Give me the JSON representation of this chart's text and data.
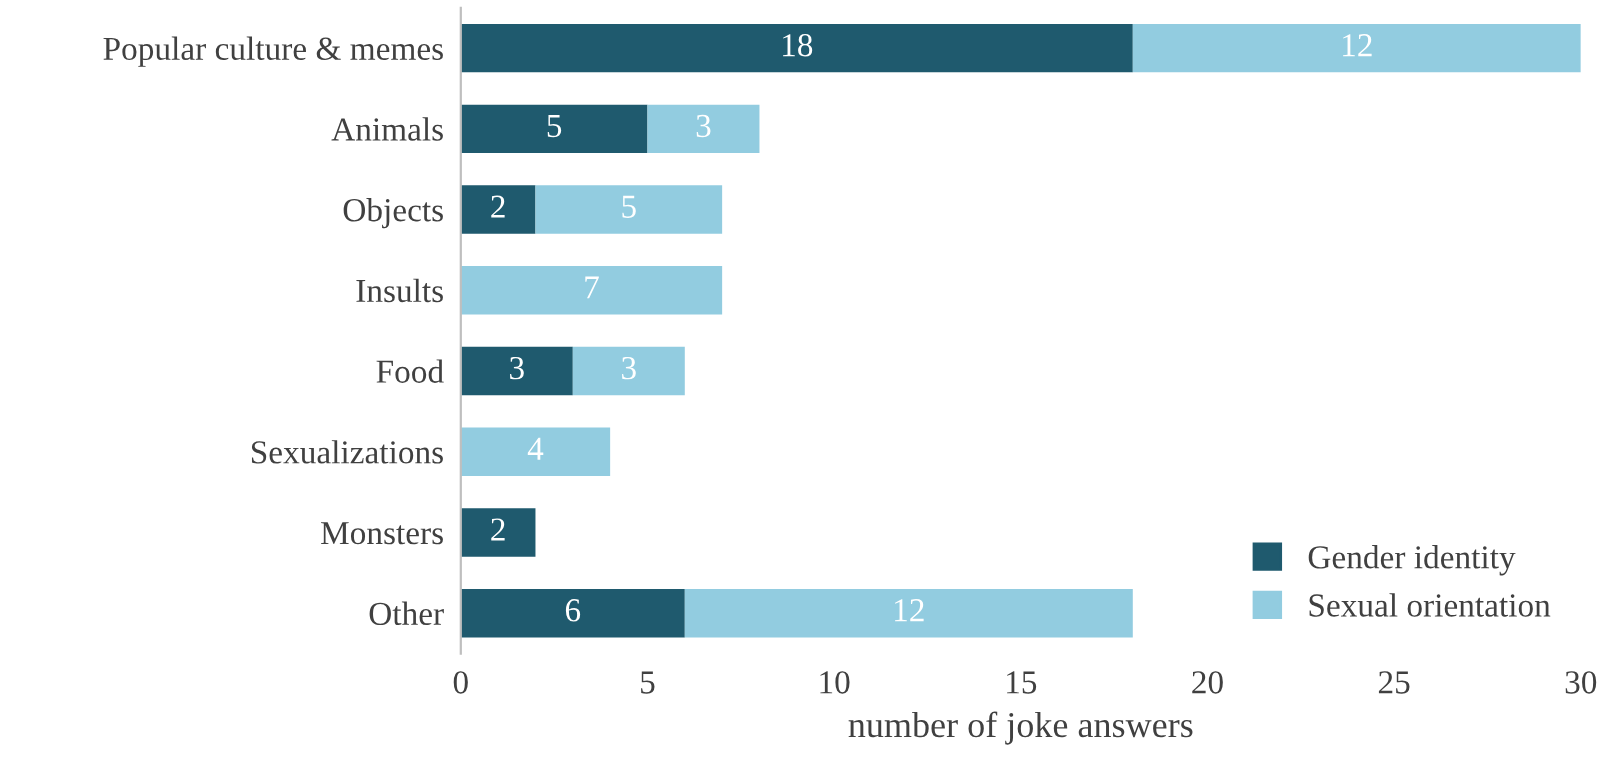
{
  "chart_data": {
    "type": "bar",
    "orientation": "horizontal",
    "stacked": true,
    "xlabel": "number of joke answers",
    "categories": [
      "Popular culture & memes",
      "Animals",
      "Objects",
      "Insults",
      "Food",
      "Sexualizations",
      "Monsters",
      "Other"
    ],
    "series": [
      {
        "name": "Gender identity",
        "color": "#1f5a6e",
        "values": [
          18,
          5,
          2,
          null,
          3,
          null,
          2,
          6
        ]
      },
      {
        "name": "Sexual orientation",
        "color": "#92cce0",
        "values": [
          12,
          3,
          5,
          7,
          3,
          4,
          null,
          12
        ]
      }
    ],
    "xlim": [
      0,
      30
    ],
    "xticks": [
      0,
      5,
      10,
      15,
      20,
      25,
      30
    ],
    "data_labels": true,
    "grid": false,
    "legend": "bottom right"
  }
}
